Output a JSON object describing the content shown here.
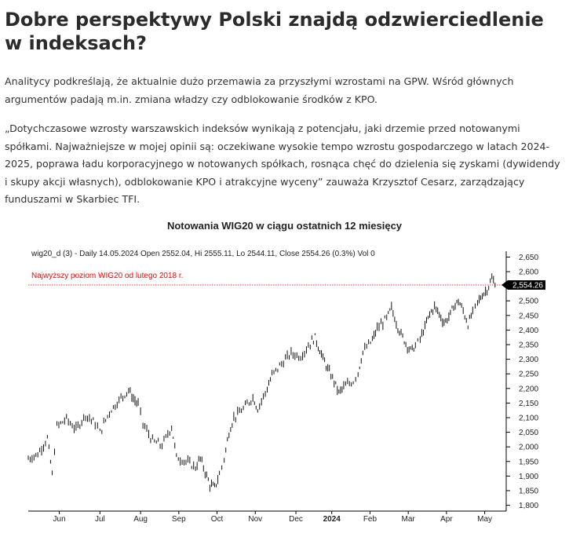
{
  "article": {
    "headline": "Dobre perspektywy Polski znajdą odzwierciedlenie w indeksach?",
    "paragraph1": "Analitycy podkreślają, że aktualnie dużo przemawia za przyszłymi wzrostami na GPW. Wśród głównych argumentów padają m.in. zmiana władzy czy odblokowanie środków z KPO.",
    "paragraph2": "„Dotychczasowe wzrosty warszawskich indeksów wynikają z potencjału, jaki drzemie przed notowanymi spółkami. Najważniejsze w mojej opinii są: oczekiwane wysokie tempo wzrostu gospodarczego w latach 2024-2025, poprawa ładu korporacyjnego w notowanych spółkach, rosnąca chęć do dzielenia się zyskami (dywidendy i skupy akcji własnych), odblokowanie KPO i atrakcyjne wyceny” zauważa Krzysztof Cesarz, zarządzający funduszami w Skarbiec TFI."
  },
  "chart_data": {
    "type": "line",
    "title": "Notowania WIG20 w ciągu ostatnich 12 miesięcy",
    "header_text": "wig20_d (3) - Daily 14.05.2024 Open 2552.04, Hi 2555.11, Lo 2544.11, Close 2554.26 (0.3%) Vol 0",
    "annotation": "Najwyższy poziom WIG20 od lutego 2018 r.",
    "reference_level": 2554.26,
    "last_value_label": "2,554.26",
    "ylim": [
      1780,
      2670
    ],
    "y_ticks": [
      2650,
      2600,
      2550,
      2500,
      2450,
      2400,
      2350,
      2300,
      2250,
      2200,
      2150,
      2100,
      2050,
      2000,
      1950,
      1900,
      1850,
      1800
    ],
    "y_tick_labels": [
      "2,650",
      "2,600",
      "2,550",
      "2,500",
      "2,450",
      "2,400",
      "2,350",
      "2,300",
      "2,250",
      "2,200",
      "2,150",
      "2,100",
      "2,050",
      "2,000",
      "1,950",
      "1,900",
      "1,850",
      "1,800"
    ],
    "x_labels": [
      "Jun",
      "Jul",
      "Aug",
      "Sep",
      "Oct",
      "Nov",
      "Dec",
      "2024",
      "Feb",
      "Mar",
      "Apr",
      "May"
    ],
    "x_label_positions": [
      0.065,
      0.15,
      0.235,
      0.315,
      0.395,
      0.475,
      0.56,
      0.635,
      0.715,
      0.795,
      0.875,
      0.955
    ],
    "grid": false,
    "legend": "none",
    "series": [
      {
        "color": "#000000",
        "points": [
          [
            0.0,
            1960
          ],
          [
            0.02,
            1975
          ],
          [
            0.04,
            2030
          ],
          [
            0.05,
            1905
          ],
          [
            0.06,
            2070
          ],
          [
            0.08,
            2095
          ],
          [
            0.1,
            2060
          ],
          [
            0.12,
            2110
          ],
          [
            0.14,
            2080
          ],
          [
            0.15,
            2050
          ],
          [
            0.17,
            2120
          ],
          [
            0.19,
            2160
          ],
          [
            0.21,
            2195
          ],
          [
            0.22,
            2165
          ],
          [
            0.23,
            2145
          ],
          [
            0.24,
            2080
          ],
          [
            0.26,
            2020
          ],
          [
            0.28,
            2005
          ],
          [
            0.3,
            2070
          ],
          [
            0.31,
            1965
          ],
          [
            0.33,
            1950
          ],
          [
            0.35,
            1930
          ],
          [
            0.36,
            1960
          ],
          [
            0.37,
            1915
          ],
          [
            0.38,
            1870
          ],
          [
            0.39,
            1860
          ],
          [
            0.4,
            1905
          ],
          [
            0.41,
            1960
          ],
          [
            0.42,
            2050
          ],
          [
            0.43,
            2100
          ],
          [
            0.45,
            2130
          ],
          [
            0.47,
            2170
          ],
          [
            0.48,
            2130
          ],
          [
            0.5,
            2200
          ],
          [
            0.51,
            2245
          ],
          [
            0.53,
            2285
          ],
          [
            0.55,
            2320
          ],
          [
            0.57,
            2310
          ],
          [
            0.59,
            2355
          ],
          [
            0.6,
            2375
          ],
          [
            0.61,
            2330
          ],
          [
            0.62,
            2290
          ],
          [
            0.63,
            2255
          ],
          [
            0.64,
            2225
          ],
          [
            0.65,
            2185
          ],
          [
            0.66,
            2205
          ],
          [
            0.68,
            2225
          ],
          [
            0.69,
            2255
          ],
          [
            0.7,
            2325
          ],
          [
            0.72,
            2365
          ],
          [
            0.73,
            2405
          ],
          [
            0.75,
            2440
          ],
          [
            0.76,
            2475
          ],
          [
            0.77,
            2425
          ],
          [
            0.78,
            2385
          ],
          [
            0.79,
            2355
          ],
          [
            0.8,
            2330
          ],
          [
            0.81,
            2345
          ],
          [
            0.82,
            2370
          ],
          [
            0.83,
            2410
          ],
          [
            0.84,
            2455
          ],
          [
            0.85,
            2480
          ],
          [
            0.86,
            2455
          ],
          [
            0.87,
            2425
          ],
          [
            0.88,
            2445
          ],
          [
            0.89,
            2480
          ],
          [
            0.9,
            2500
          ],
          [
            0.91,
            2465
          ],
          [
            0.92,
            2420
          ],
          [
            0.93,
            2460
          ],
          [
            0.94,
            2495
          ],
          [
            0.95,
            2520
          ],
          [
            0.96,
            2540
          ],
          [
            0.97,
            2575
          ],
          [
            0.98,
            2554
          ]
        ]
      }
    ]
  }
}
